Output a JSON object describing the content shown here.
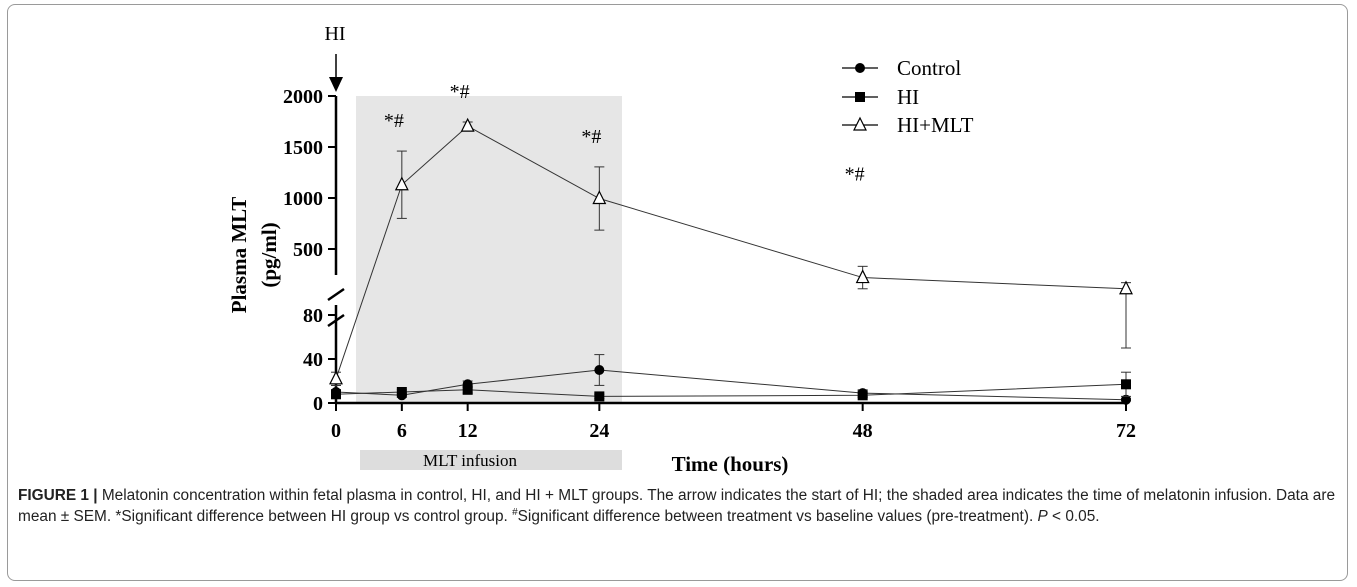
{
  "chart_data": {
    "type": "line",
    "ylabel_line1": "Plasma MLT",
    "ylabel_line2": "(pg/ml)",
    "xlabel": "Time (hours)",
    "x": [
      0,
      6,
      12,
      24,
      48,
      72
    ],
    "x_ticks": [
      "0",
      "6",
      "12",
      "24",
      "48",
      "72"
    ],
    "x_range": [
      0,
      72
    ],
    "y_axis_broken": true,
    "y_lower_range": [
      0,
      80
    ],
    "y_lower_ticks": [
      "0",
      "40",
      "80"
    ],
    "y_upper_range": [
      0,
      2000
    ],
    "y_upper_ticks": [
      "500",
      "1000",
      "1500",
      "2000"
    ],
    "grid": false,
    "legend_position": "top-right",
    "series": [
      {
        "name": "Control",
        "marker": "circle-filled",
        "values": [
          10,
          7,
          17,
          30,
          9,
          3
        ],
        "sem": [
          6,
          2,
          3,
          14,
          3,
          1
        ]
      },
      {
        "name": "HI",
        "marker": "square-filled",
        "values": [
          8,
          10,
          12,
          6,
          7,
          17
        ],
        "sem": [
          4,
          2,
          3,
          2,
          2,
          11
        ]
      },
      {
        "name": "HI+MLT",
        "marker": "triangle-open",
        "values": [
          22,
          1130,
          1705,
          995,
          220,
          110
        ],
        "sem": [
          6,
          330,
          40,
          310,
          110,
          60
        ]
      }
    ],
    "significance_labels": [
      {
        "x": 6,
        "text": "*#"
      },
      {
        "x": 12,
        "text": "*#"
      },
      {
        "x": 24,
        "text": "*#"
      },
      {
        "x": 48,
        "text": "*#"
      }
    ],
    "hi_arrow": {
      "x": 0,
      "label": "HI"
    },
    "infusion": {
      "label": "MLT infusion"
    }
  },
  "caption": {
    "label": "FIGURE 1 |",
    "text": "Melatonin concentration within fetal  plasma in control, HI, and HI + MLT groups. The arrow indicates the start of HI; the shaded area indicates the time of melatonin infusion. Data are mean ± SEM. *Significant difference between HI group vs control group. ",
    "hash": "#",
    "text2": "Significant difference between treatment vs baseline values (pre-treatment). ",
    "p_symbol": "P",
    "text3": " < 0.05."
  }
}
